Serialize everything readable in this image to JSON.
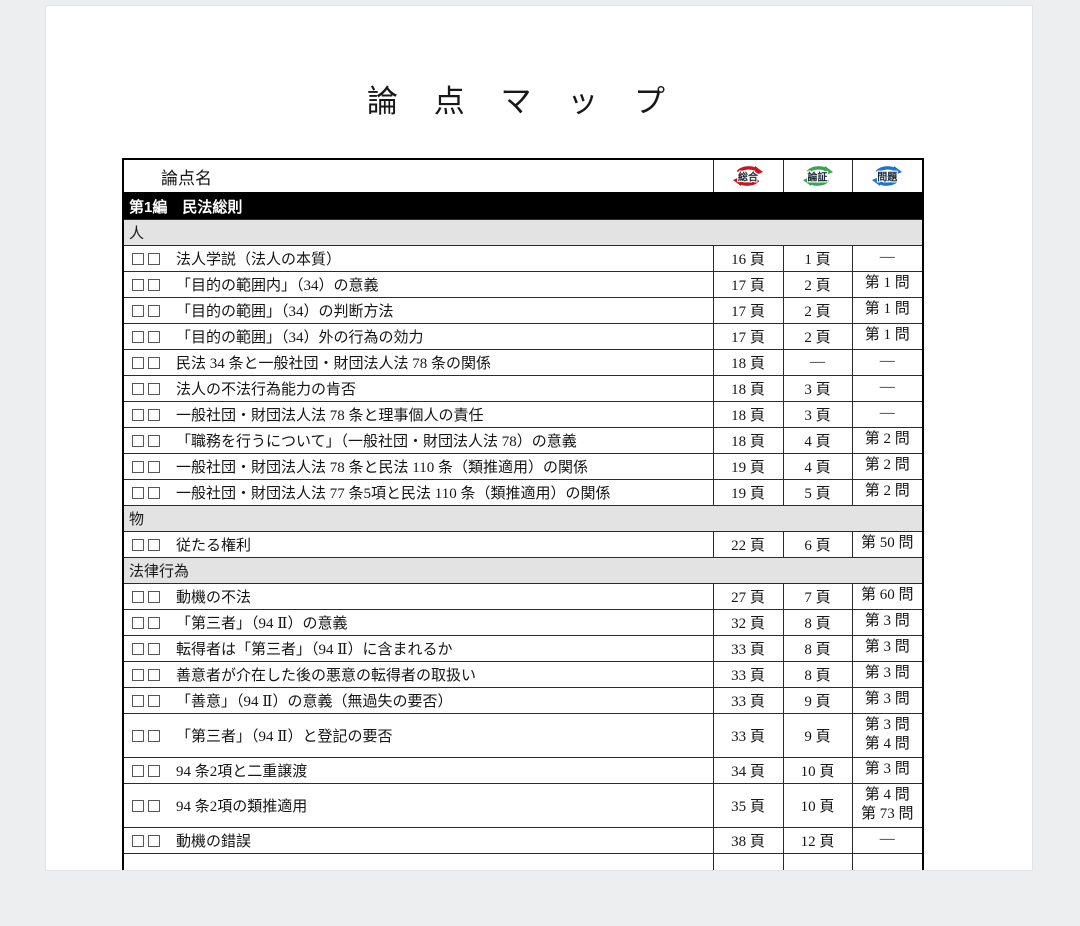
{
  "title": "論 点 マ ッ プ",
  "table": {
    "header": {
      "topic": "論点名",
      "icons": [
        {
          "label": "総合",
          "color": "#c9151e"
        },
        {
          "label": "論証",
          "color": "#3aa54e"
        },
        {
          "label": "問題",
          "color": "#1b75cf"
        }
      ]
    },
    "rows": [
      {
        "type": "part",
        "label": "第1編　民法総則"
      },
      {
        "type": "section",
        "label": "人"
      },
      {
        "type": "topic",
        "name": "法人学説（法人の本質）",
        "sogo": "16 頁",
        "ronsho": "1 頁",
        "mondai": [
          "―"
        ]
      },
      {
        "type": "topic",
        "name": "「目的の範囲内」（34）の意義",
        "sogo": "17 頁",
        "ronsho": "2 頁",
        "mondai": [
          "第 1 問"
        ]
      },
      {
        "type": "topic",
        "name": "「目的の範囲」（34）の判断方法",
        "sogo": "17 頁",
        "ronsho": "2 頁",
        "mondai": [
          "第 1 問"
        ]
      },
      {
        "type": "topic",
        "name": "「目的の範囲」（34）外の行為の効力",
        "sogo": "17 頁",
        "ronsho": "2 頁",
        "mondai": [
          "第 1 問"
        ]
      },
      {
        "type": "topic",
        "name": "民法 34 条と一般社団・財団法人法 78 条の関係",
        "sogo": "18 頁",
        "ronsho": "―",
        "mondai": [
          "―"
        ]
      },
      {
        "type": "topic",
        "name": "法人の不法行為能力の肯否",
        "sogo": "18 頁",
        "ronsho": "3 頁",
        "mondai": [
          "―"
        ]
      },
      {
        "type": "topic",
        "name": "一般社団・財団法人法 78 条と理事個人の責任",
        "sogo": "18 頁",
        "ronsho": "3 頁",
        "mondai": [
          "―"
        ]
      },
      {
        "type": "topic",
        "name": "「職務を行うについて」（一般社団・財団法人法 78）の意義",
        "sogo": "18 頁",
        "ronsho": "4 頁",
        "mondai": [
          "第 2 問"
        ]
      },
      {
        "type": "topic",
        "name": "一般社団・財団法人法 78 条と民法 110 条（類推適用）の関係",
        "sogo": "19 頁",
        "ronsho": "4 頁",
        "mondai": [
          "第 2 問"
        ]
      },
      {
        "type": "topic",
        "name": "一般社団・財団法人法 77 条5項と民法 110 条（類推適用）の関係",
        "sogo": "19 頁",
        "ronsho": "5 頁",
        "mondai": [
          "第 2 問"
        ]
      },
      {
        "type": "section",
        "label": "物"
      },
      {
        "type": "topic",
        "name": "従たる権利",
        "sogo": "22 頁",
        "ronsho": "6 頁",
        "mondai": [
          "第 50 問"
        ]
      },
      {
        "type": "section",
        "label": "法律行為"
      },
      {
        "type": "topic",
        "name": "動機の不法",
        "sogo": "27 頁",
        "ronsho": "7 頁",
        "mondai": [
          "第 60 問"
        ]
      },
      {
        "type": "topic",
        "name": "「第三者」（94 Ⅱ）の意義",
        "sogo": "32 頁",
        "ronsho": "8 頁",
        "mondai": [
          "第 3 問"
        ]
      },
      {
        "type": "topic",
        "name": "転得者は「第三者」（94 Ⅱ）に含まれるか",
        "sogo": "33 頁",
        "ronsho": "8 頁",
        "mondai": [
          "第 3 問"
        ]
      },
      {
        "type": "topic",
        "name": "善意者が介在した後の悪意の転得者の取扱い",
        "sogo": "33 頁",
        "ronsho": "8 頁",
        "mondai": [
          "第 3 問"
        ]
      },
      {
        "type": "topic",
        "name": "「善意」（94 Ⅱ）の意義（無過失の要否）",
        "sogo": "33 頁",
        "ronsho": "9 頁",
        "mondai": [
          "第 3 問"
        ]
      },
      {
        "type": "topic",
        "name": "「第三者」（94 Ⅱ）と登記の要否",
        "sogo": "33 頁",
        "ronsho": "9 頁",
        "mondai": [
          "第 3 問",
          "第 4 問"
        ]
      },
      {
        "type": "topic",
        "name": "94 条2項と二重譲渡",
        "sogo": "34 頁",
        "ronsho": "10 頁",
        "mondai": [
          "第 3 問"
        ]
      },
      {
        "type": "topic",
        "name": "94 条2項の類推適用",
        "sogo": "35 頁",
        "ronsho": "10 頁",
        "mondai": [
          "第 4 問",
          "第 73 問"
        ]
      },
      {
        "type": "topic",
        "name": "動機の錯誤",
        "sogo": "38 頁",
        "ronsho": "12 頁",
        "mondai": [
          "―"
        ]
      },
      {
        "type": "partial"
      }
    ]
  }
}
